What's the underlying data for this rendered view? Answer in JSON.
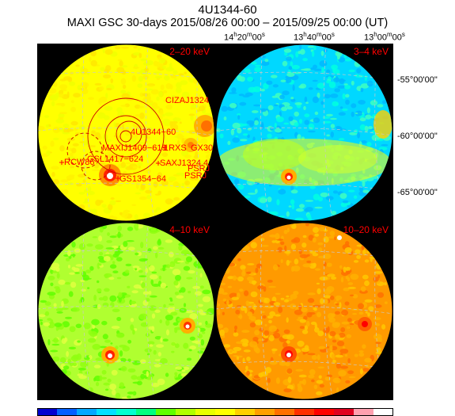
{
  "title": {
    "object": "4U1344-60",
    "subtitle": "MAXI GSC 30-days 2015/08/26 00:00 – 2015/09/25 00:00 (UT)"
  },
  "axes": {
    "ra_labels": [
      {
        "text": "14h20m00s",
        "h": "14",
        "m": "20",
        "s": "00"
      },
      {
        "text": "13h40m00s",
        "h": "13",
        "m": "40",
        "s": "00"
      },
      {
        "text": "13h00m00s",
        "h": "13",
        "m": "00",
        "s": "00"
      }
    ],
    "dec_labels": [
      "-55°00'00\"",
      "-60°00'00\"",
      "-65°00'00\""
    ]
  },
  "panels": [
    {
      "energy_band": "2–20 keV",
      "background": "#ffff00",
      "speckle": [
        "#ffe600",
        "#f0ff00",
        "#fff200"
      ]
    },
    {
      "energy_band": "3–4 keV",
      "background": "#00d8ff",
      "speckle": [
        "#00ffe0",
        "#00b8ff",
        "#40ffc0"
      ]
    },
    {
      "energy_band": "4–10 keV",
      "background": "#b0ff30",
      "speckle": [
        "#60ff00",
        "#e0ff40",
        "#90ff10"
      ]
    },
    {
      "energy_band": "10–20 keV",
      "background": "#ff9a00",
      "speckle": [
        "#ffc800",
        "#ff7000",
        "#ffb000"
      ]
    }
  ],
  "sources": [
    {
      "label": "CIZAJ1324"
    },
    {
      "label": "4U1344−60"
    },
    {
      "label": "MAXIJ1409−619"
    },
    {
      "label": "1RXS"
    },
    {
      "label": "GX30"
    },
    {
      "label": "RCW86"
    },
    {
      "label": "GSL1417−624"
    },
    {
      "label": "SAXJ1324.4"
    },
    {
      "label": "PSRJ"
    },
    {
      "label": "PSRJ"
    },
    {
      "label": "GS1354−64"
    }
  ],
  "colorbar": [
    "#0000d0",
    "#0060ff",
    "#00a8ff",
    "#00e0ff",
    "#00ffd0",
    "#00ff80",
    "#60ff00",
    "#b0ff00",
    "#e8ff00",
    "#ffff00",
    "#ffd000",
    "#ffa000",
    "#ff7000",
    "#ff3000",
    "#ff0000",
    "#e00020",
    "#ffa0b0",
    "#ffffff"
  ],
  "colors": {
    "label": "#ff0000",
    "source_circle": "#cc0000",
    "grid": "#c8c8c8",
    "frame": "#000000"
  }
}
